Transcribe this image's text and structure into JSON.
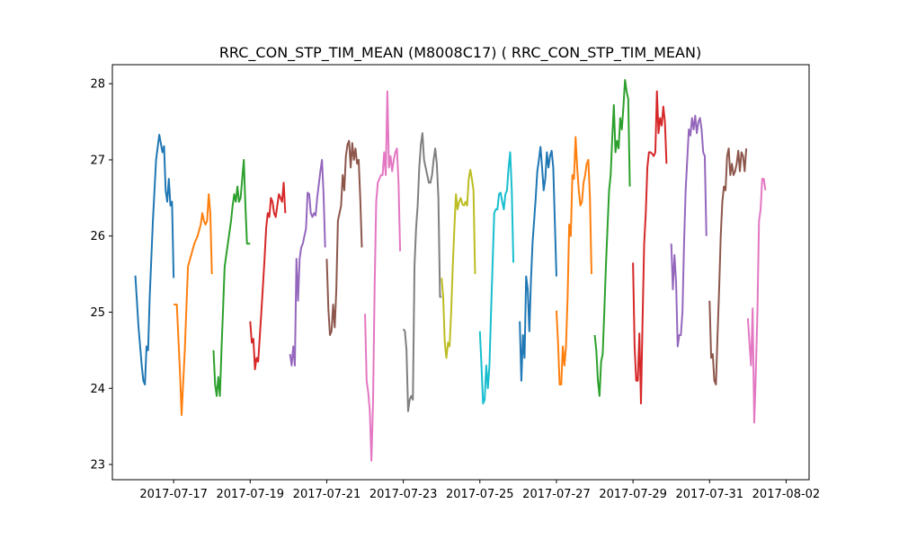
{
  "chart_data": {
    "type": "line",
    "title": "RRC_CON_STP_TIM_MEAN (M8008C17) ( RRC_CON_STP_TIM_MEAN)",
    "xlabel": "",
    "ylabel": "",
    "xlim": [
      "2017-07-15T09:36",
      "2017-08-02T14:24"
    ],
    "ylim": [
      22.8,
      28.25
    ],
    "x_ticks": [
      "2017-07-17",
      "2017-07-19",
      "2017-07-21",
      "2017-07-23",
      "2017-07-25",
      "2017-07-27",
      "2017-07-29",
      "2017-07-31",
      "2017-08-02"
    ],
    "y_ticks": [
      23,
      24,
      25,
      26,
      27,
      28
    ],
    "grid": false,
    "legend": "none",
    "colors": [
      "#1f77b4",
      "#ff7f0e",
      "#2ca02c",
      "#d62728",
      "#9467bd",
      "#8c564b",
      "#e377c2",
      "#7f7f7f",
      "#bcbd22",
      "#17becf"
    ],
    "series": [
      {
        "x": [
          "2017-07-16T00:00",
          "2017-07-16T02:00",
          "2017-07-16T04:00",
          "2017-07-16T05:00",
          "2017-07-16T06:00",
          "2017-07-16T07:00",
          "2017-07-16T08:00",
          "2017-07-16T09:00",
          "2017-07-16T11:00",
          "2017-07-16T13:00",
          "2017-07-16T15:00",
          "2017-07-16T17:00",
          "2017-07-16T18:00",
          "2017-07-16T19:00",
          "2017-07-16T20:00",
          "2017-07-16T21:00",
          "2017-07-16T22:00",
          "2017-07-16T23:00",
          "2017-07-17T00:00"
        ],
        "y": [
          25.48,
          24.8,
          24.3,
          24.1,
          24.05,
          24.55,
          24.5,
          25.2,
          26.2,
          27.0,
          27.33,
          27.1,
          27.18,
          26.6,
          26.45,
          26.75,
          26.4,
          26.45,
          25.45
        ]
      },
      {
        "x": [
          "2017-07-17T00:00",
          "2017-07-17T02:00",
          "2017-07-17T04:00",
          "2017-07-17T05:00",
          "2017-07-17T07:00",
          "2017-07-17T09:00",
          "2017-07-17T11:00",
          "2017-07-17T13:00",
          "2017-07-17T15:00",
          "2017-07-17T17:00",
          "2017-07-17T18:00",
          "2017-07-17T19:00",
          "2017-07-17T20:00",
          "2017-07-17T21:00",
          "2017-07-17T22:00",
          "2017-07-17T23:00",
          "2017-07-18T00:00"
        ],
        "y": [
          25.1,
          25.1,
          24.2,
          23.65,
          24.5,
          25.6,
          25.75,
          25.9,
          26.0,
          26.15,
          26.3,
          26.2,
          26.15,
          26.2,
          26.55,
          26.3,
          25.5
        ]
      },
      {
        "x": [
          "2017-07-18T01:00",
          "2017-07-18T02:00",
          "2017-07-18T03:00",
          "2017-07-18T04:00",
          "2017-07-18T05:00",
          "2017-07-18T06:00",
          "2017-07-18T08:00",
          "2017-07-18T10:00",
          "2017-07-18T12:00",
          "2017-07-18T13:00",
          "2017-07-18T14:00",
          "2017-07-18T15:00",
          "2017-07-18T16:00",
          "2017-07-18T17:00",
          "2017-07-18T18:00",
          "2017-07-18T19:00",
          "2017-07-18T20:00",
          "2017-07-18T21:00",
          "2017-07-18T22:00",
          "2017-07-19T00:00"
        ],
        "y": [
          24.5,
          24.05,
          23.9,
          24.15,
          23.9,
          24.5,
          25.6,
          25.9,
          26.2,
          26.4,
          26.55,
          26.45,
          26.65,
          26.45,
          26.5,
          26.75,
          27.0,
          26.4,
          25.9,
          25.9
        ]
      },
      {
        "x": [
          "2017-07-19T00:00",
          "2017-07-19T01:00",
          "2017-07-19T02:00",
          "2017-07-19T03:00",
          "2017-07-19T04:00",
          "2017-07-19T05:00",
          "2017-07-19T07:00",
          "2017-07-19T09:00",
          "2017-07-19T10:00",
          "2017-07-19T11:00",
          "2017-07-19T12:00",
          "2017-07-19T13:00",
          "2017-07-19T14:00",
          "2017-07-19T15:00",
          "2017-07-19T16:00",
          "2017-07-19T17:00",
          "2017-07-19T18:00",
          "2017-07-19T19:00",
          "2017-07-19T20:00",
          "2017-07-19T21:00",
          "2017-07-19T22:00"
        ],
        "y": [
          24.88,
          24.6,
          24.65,
          24.25,
          24.4,
          24.35,
          25.0,
          25.7,
          26.1,
          26.3,
          26.25,
          26.5,
          26.45,
          26.3,
          26.25,
          26.4,
          26.55,
          26.5,
          26.45,
          26.7,
          26.3
        ]
      },
      {
        "x": [
          "2017-07-20T01:00",
          "2017-07-20T02:00",
          "2017-07-20T03:00",
          "2017-07-20T04:00",
          "2017-07-20T05:00",
          "2017-07-20T06:00",
          "2017-07-20T07:00",
          "2017-07-20T08:00",
          "2017-07-20T09:00",
          "2017-07-20T11:00",
          "2017-07-20T12:00",
          "2017-07-20T13:00",
          "2017-07-20T14:00",
          "2017-07-20T15:00",
          "2017-07-20T16:00",
          "2017-07-20T17:00",
          "2017-07-20T18:00",
          "2017-07-20T20:00",
          "2017-07-20T21:00",
          "2017-07-20T22:00",
          "2017-07-20T23:00"
        ],
        "y": [
          24.45,
          24.3,
          24.55,
          24.3,
          25.7,
          25.15,
          25.7,
          25.85,
          25.9,
          26.1,
          26.57,
          26.55,
          26.3,
          26.25,
          26.3,
          26.27,
          26.5,
          26.85,
          27.0,
          26.55,
          25.85
        ]
      },
      {
        "x": [
          "2017-07-21T00:00",
          "2017-07-21T01:00",
          "2017-07-21T02:00",
          "2017-07-21T03:00",
          "2017-07-21T04:00",
          "2017-07-21T05:00",
          "2017-07-21T06:00",
          "2017-07-21T07:00",
          "2017-07-21T08:00",
          "2017-07-21T09:00",
          "2017-07-21T10:00",
          "2017-07-21T11:00",
          "2017-07-21T12:00",
          "2017-07-21T13:00",
          "2017-07-21T14:00",
          "2017-07-21T15:00",
          "2017-07-21T16:00",
          "2017-07-21T17:00",
          "2017-07-21T18:00",
          "2017-07-21T19:00",
          "2017-07-21T20:00",
          "2017-07-21T21:00",
          "2017-07-21T22:00"
        ],
        "y": [
          25.7,
          25.05,
          24.7,
          24.75,
          25.1,
          24.8,
          25.3,
          26.2,
          26.3,
          26.4,
          26.8,
          26.6,
          27.05,
          27.2,
          27.25,
          26.9,
          27.22,
          27.0,
          27.15,
          26.95,
          27.0,
          26.5,
          25.85
        ]
      },
      {
        "x": [
          "2017-07-22T00:00",
          "2017-07-22T01:00",
          "2017-07-22T02:00",
          "2017-07-22T03:00",
          "2017-07-22T04:00",
          "2017-07-22T05:00",
          "2017-07-22T06:00",
          "2017-07-22T07:00",
          "2017-07-22T08:00",
          "2017-07-22T09:00",
          "2017-07-22T10:00",
          "2017-07-22T11:00",
          "2017-07-22T12:00",
          "2017-07-22T13:00",
          "2017-07-22T14:00",
          "2017-07-22T15:00",
          "2017-07-22T16:00",
          "2017-07-22T17:00",
          "2017-07-22T18:00",
          "2017-07-22T19:00",
          "2017-07-22T20:00",
          "2017-07-22T21:00",
          "2017-07-22T22:00"
        ],
        "y": [
          24.98,
          24.1,
          23.95,
          23.7,
          23.05,
          23.8,
          25.3,
          26.45,
          26.7,
          26.75,
          26.8,
          26.8,
          27.1,
          26.8,
          27.9,
          26.9,
          27.05,
          26.85,
          27.0,
          27.1,
          27.15,
          26.7,
          25.8
        ]
      },
      {
        "x": [
          "2017-07-23T00:00",
          "2017-07-23T01:00",
          "2017-07-23T02:00",
          "2017-07-23T03:00",
          "2017-07-23T04:00",
          "2017-07-23T05:00",
          "2017-07-23T06:00",
          "2017-07-23T07:00",
          "2017-07-23T08:00",
          "2017-07-23T09:00",
          "2017-07-23T10:00",
          "2017-07-23T11:00",
          "2017-07-23T12:00",
          "2017-07-23T13:00",
          "2017-07-23T14:00",
          "2017-07-23T15:00",
          "2017-07-23T16:00",
          "2017-07-23T17:00",
          "2017-07-23T18:00",
          "2017-07-23T19:00",
          "2017-07-23T20:00",
          "2017-07-23T21:00",
          "2017-07-23T22:00",
          "2017-07-23T23:00",
          "2017-07-24T00:00"
        ],
        "y": [
          24.78,
          24.75,
          24.5,
          23.7,
          23.85,
          23.9,
          23.85,
          25.6,
          26.1,
          26.4,
          26.9,
          27.2,
          27.35,
          27.0,
          26.9,
          26.8,
          26.7,
          26.7,
          26.8,
          27.0,
          27.15,
          26.95,
          26.5,
          25.2,
          25.2
        ]
      },
      {
        "x": [
          "2017-07-24T00:00",
          "2017-07-24T01:00",
          "2017-07-24T02:00",
          "2017-07-24T03:00",
          "2017-07-24T04:00",
          "2017-07-24T05:00",
          "2017-07-24T06:00",
          "2017-07-24T07:00",
          "2017-07-24T08:00",
          "2017-07-24T09:00",
          "2017-07-24T10:00",
          "2017-07-24T11:00",
          "2017-07-24T12:00",
          "2017-07-24T13:00",
          "2017-07-24T14:00",
          "2017-07-24T15:00",
          "2017-07-24T16:00",
          "2017-07-24T17:00",
          "2017-07-24T18:00",
          "2017-07-24T19:00",
          "2017-07-24T20:00",
          "2017-07-24T21:00",
          "2017-07-24T22:00",
          "2017-07-24T23:00",
          "2017-07-25T00:00"
        ],
        "y": [
          25.45,
          25.2,
          24.6,
          24.4,
          24.6,
          24.55,
          25.0,
          25.6,
          26.1,
          26.55,
          26.35,
          26.45,
          26.5,
          26.42,
          26.4,
          26.45,
          26.4,
          26.75,
          26.87,
          26.75,
          26.6,
          25.5,
          null,
          null,
          null
        ]
      },
      {
        "x": [
          "2017-07-25T00:00",
          "2017-07-25T01:00",
          "2017-07-25T02:00",
          "2017-07-25T03:00",
          "2017-07-25T04:00",
          "2017-07-25T05:00",
          "2017-07-25T06:00",
          "2017-07-25T07:00",
          "2017-07-25T08:00",
          "2017-07-25T09:00",
          "2017-07-25T10:00",
          "2017-07-25T11:00",
          "2017-07-25T12:00",
          "2017-07-25T13:00",
          "2017-07-25T14:00",
          "2017-07-25T15:00",
          "2017-07-25T16:00",
          "2017-07-25T17:00",
          "2017-07-25T18:00",
          "2017-07-25T19:00",
          "2017-07-25T20:00",
          "2017-07-25T21:00"
        ],
        "y": [
          24.75,
          24.3,
          23.8,
          23.85,
          24.3,
          24.0,
          24.3,
          25.0,
          25.65,
          26.3,
          26.35,
          26.35,
          26.55,
          26.57,
          26.45,
          26.35,
          26.55,
          26.6,
          26.9,
          27.1,
          26.6,
          25.65
        ]
      },
      {
        "x": [
          "2017-07-26T01:00",
          "2017-07-26T02:00",
          "2017-07-26T03:00",
          "2017-07-26T04:00",
          "2017-07-26T05:00",
          "2017-07-26T06:00",
          "2017-07-26T07:00",
          "2017-07-26T08:00",
          "2017-07-26T09:00",
          "2017-07-26T10:00",
          "2017-07-26T11:00",
          "2017-07-26T12:00",
          "2017-07-26T13:00",
          "2017-07-26T14:00",
          "2017-07-26T15:00",
          "2017-07-26T16:00",
          "2017-07-26T17:00",
          "2017-07-26T18:00",
          "2017-07-26T19:00",
          "2017-07-26T20:00",
          "2017-07-26T21:00",
          "2017-07-26T22:00",
          "2017-07-27T00:00"
        ],
        "y": [
          24.88,
          24.1,
          24.7,
          24.4,
          25.47,
          25.3,
          24.75,
          25.4,
          25.9,
          26.2,
          26.5,
          26.85,
          27.0,
          27.17,
          26.9,
          26.6,
          26.75,
          27.1,
          26.9,
          27.05,
          27.12,
          26.9,
          25.47
        ]
      },
      {
        "x": [
          "2017-07-27T00:00",
          "2017-07-27T01:00",
          "2017-07-27T02:00",
          "2017-07-27T03:00",
          "2017-07-27T04:00",
          "2017-07-27T05:00",
          "2017-07-27T06:00",
          "2017-07-27T07:00",
          "2017-07-27T08:00",
          "2017-07-27T09:00",
          "2017-07-27T10:00",
          "2017-07-27T11:00",
          "2017-07-27T12:00",
          "2017-07-27T13:00",
          "2017-07-27T14:00",
          "2017-07-27T15:00",
          "2017-07-27T16:00",
          "2017-07-27T17:00",
          "2017-07-27T18:00",
          "2017-07-27T19:00",
          "2017-07-27T20:00",
          "2017-07-27T21:00",
          "2017-07-27T22:00",
          "2017-07-27T23:00",
          "2017-07-28T00:00"
        ],
        "y": [
          25.02,
          24.6,
          24.05,
          24.05,
          24.55,
          24.3,
          24.55,
          25.2,
          26.15,
          26.0,
          26.8,
          26.75,
          27.3,
          26.9,
          26.6,
          26.4,
          26.45,
          26.7,
          26.8,
          26.95,
          27.0,
          26.5,
          25.5,
          null,
          null
        ]
      },
      {
        "x": [
          "2017-07-28T00:00",
          "2017-07-28T01:00",
          "2017-07-28T02:00",
          "2017-07-28T03:00",
          "2017-07-28T04:00",
          "2017-07-28T05:00",
          "2017-07-28T06:00",
          "2017-07-28T07:00",
          "2017-07-28T08:00",
          "2017-07-28T09:00",
          "2017-07-28T10:00",
          "2017-07-28T11:00",
          "2017-07-28T12:00",
          "2017-07-28T13:00",
          "2017-07-28T14:00",
          "2017-07-28T15:00",
          "2017-07-28T16:00",
          "2017-07-28T17:00",
          "2017-07-28T18:00",
          "2017-07-28T19:00",
          "2017-07-28T20:00",
          "2017-07-28T21:00",
          "2017-07-28T22:00",
          "2017-07-28T23:00",
          "2017-07-29T00:00"
        ],
        "y": [
          24.7,
          24.5,
          24.1,
          23.9,
          24.35,
          24.45,
          25.0,
          25.6,
          26.1,
          26.6,
          26.8,
          27.3,
          27.72,
          27.1,
          27.25,
          27.15,
          27.55,
          27.4,
          27.7,
          28.05,
          27.9,
          27.8,
          26.65,
          null,
          null
        ]
      },
      {
        "x": [
          "2017-07-29T00:00",
          "2017-07-29T01:00",
          "2017-07-29T02:00",
          "2017-07-29T03:00",
          "2017-07-29T04:00",
          "2017-07-29T05:00",
          "2017-07-29T06:00",
          "2017-07-29T07:00",
          "2017-07-29T08:00",
          "2017-07-29T09:00",
          "2017-07-29T10:00",
          "2017-07-29T11:00",
          "2017-07-29T12:00",
          "2017-07-29T13:00",
          "2017-07-29T14:00",
          "2017-07-29T15:00",
          "2017-07-29T16:00",
          "2017-07-29T17:00",
          "2017-07-29T18:00",
          "2017-07-29T19:00",
          "2017-07-29T20:00",
          "2017-07-29T21:00",
          "2017-07-29T22:00",
          "2017-07-29T23:00"
        ],
        "y": [
          25.65,
          24.55,
          24.1,
          24.1,
          24.72,
          23.8,
          24.9,
          25.9,
          26.3,
          26.9,
          27.1,
          27.1,
          27.08,
          27.05,
          27.1,
          27.9,
          27.35,
          27.55,
          27.45,
          27.7,
          27.5,
          26.95,
          null,
          null
        ]
      },
      {
        "x": [
          "2017-07-30T00:00",
          "2017-07-30T01:00",
          "2017-07-30T02:00",
          "2017-07-30T03:00",
          "2017-07-30T04:00",
          "2017-07-30T05:00",
          "2017-07-30T06:00",
          "2017-07-30T07:00",
          "2017-07-30T08:00",
          "2017-07-30T09:00",
          "2017-07-30T10:00",
          "2017-07-30T11:00",
          "2017-07-30T12:00",
          "2017-07-30T13:00",
          "2017-07-30T14:00",
          "2017-07-30T15:00",
          "2017-07-30T16:00",
          "2017-07-30T17:00",
          "2017-07-30T18:00",
          "2017-07-30T19:00",
          "2017-07-30T20:00",
          "2017-07-30T21:00",
          "2017-07-30T22:00",
          "2017-07-30T23:00"
        ],
        "y": [
          25.9,
          25.3,
          25.75,
          25.4,
          24.55,
          24.7,
          24.7,
          25.0,
          25.9,
          26.6,
          27.0,
          27.4,
          27.32,
          27.55,
          27.4,
          27.58,
          27.35,
          27.5,
          27.55,
          27.4,
          27.1,
          27.05,
          26.0,
          null
        ]
      },
      {
        "x": [
          "2017-07-31T00:00",
          "2017-07-31T01:00",
          "2017-07-31T02:00",
          "2017-07-31T03:00",
          "2017-07-31T04:00",
          "2017-07-31T05:00",
          "2017-07-31T06:00",
          "2017-07-31T07:00",
          "2017-07-31T08:00",
          "2017-07-31T09:00",
          "2017-07-31T10:00",
          "2017-07-31T11:00",
          "2017-07-31T12:00",
          "2017-07-31T13:00",
          "2017-07-31T14:00",
          "2017-07-31T15:00",
          "2017-07-31T16:00",
          "2017-07-31T17:00",
          "2017-07-31T18:00",
          "2017-07-31T19:00",
          "2017-07-31T20:00",
          "2017-07-31T21:00",
          "2017-07-31T22:00",
          "2017-07-31T23:00"
        ],
        "y": [
          25.15,
          24.4,
          24.45,
          24.1,
          24.05,
          24.7,
          25.3,
          26.0,
          26.45,
          26.65,
          26.6,
          27.05,
          27.15,
          26.8,
          26.95,
          26.8,
          26.85,
          26.95,
          27.12,
          26.85,
          27.1,
          27.05,
          26.85,
          27.15
        ]
      },
      {
        "x": [
          "2017-08-01T00:00",
          "2017-08-01T01:00",
          "2017-08-01T02:00",
          "2017-08-01T03:00",
          "2017-08-01T04:00",
          "2017-08-01T05:00",
          "2017-08-01T06:00",
          "2017-08-01T07:00",
          "2017-08-01T08:00",
          "2017-08-01T09:00",
          "2017-08-01T10:00",
          "2017-08-01T11:00"
        ],
        "y": [
          24.92,
          24.6,
          24.3,
          25.05,
          23.55,
          24.2,
          25.0,
          26.2,
          26.35,
          26.75,
          26.75,
          26.6
        ]
      }
    ]
  }
}
